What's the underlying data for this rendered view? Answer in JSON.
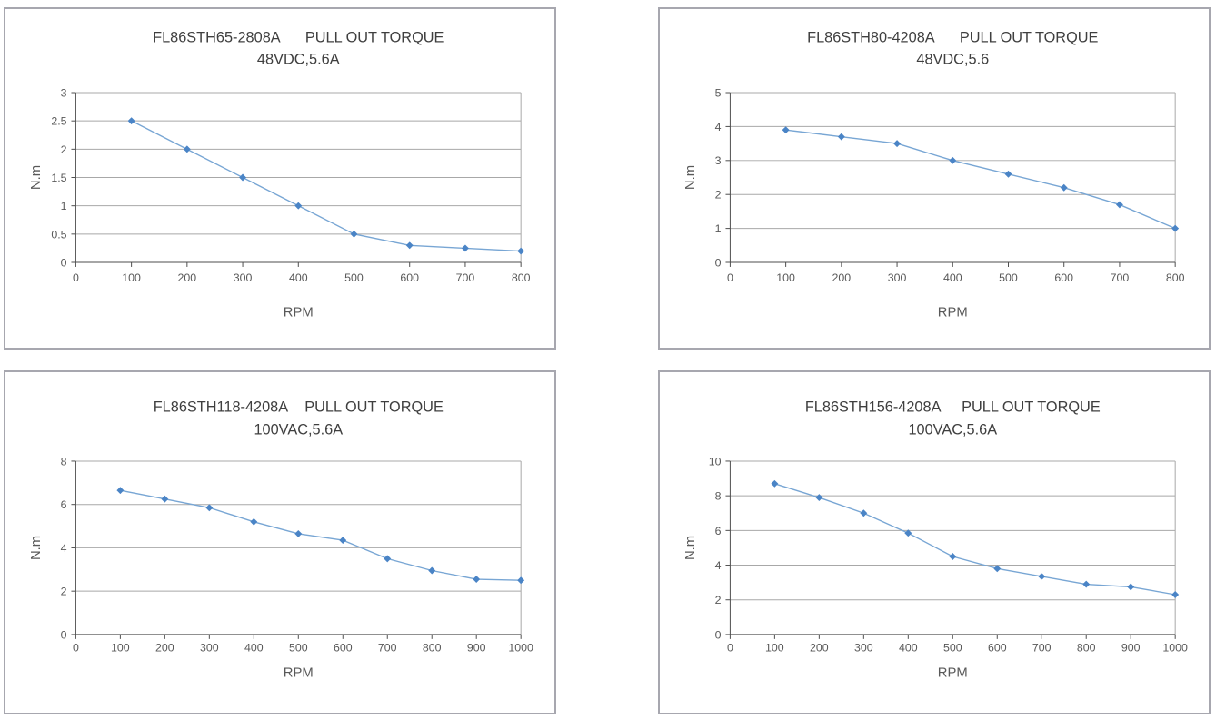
{
  "page": {
    "description": "Four pull-out torque curve charts for FL86STH stepper motors",
    "background": "#ffffff"
  },
  "colors": {
    "line": "#78a6d4",
    "marker": "#4a84c6",
    "grid": "#a8a8a8",
    "axis": "#4d4d4d",
    "panel_border": "#a7a7af",
    "title_text": "#3f3f3f",
    "tick_text": "#595959"
  },
  "chart_data": [
    {
      "type": "line",
      "title": "FL86STH65-2808A      PULL OUT TORQUE",
      "subtitle": "48VDC,5.6A",
      "xlabel": "RPM",
      "ylabel": "N.m",
      "x": [
        100,
        200,
        300,
        400,
        500,
        600,
        700,
        800
      ],
      "values": [
        2.5,
        2.0,
        1.5,
        1.0,
        0.5,
        0.3,
        0.25,
        0.2
      ],
      "xlim": [
        0,
        800
      ],
      "ylim": [
        0,
        3
      ],
      "xtick_step": 100,
      "ytick_step": 0.5,
      "grid": true,
      "legend": "none",
      "marker": "diamond"
    },
    {
      "type": "line",
      "title": "FL86STH80-4208A      PULL OUT TORQUE",
      "subtitle": "48VDC,5.6",
      "xlabel": "RPM",
      "ylabel": "N.m",
      "x": [
        100,
        200,
        300,
        400,
        500,
        600,
        700,
        800
      ],
      "values": [
        3.9,
        3.7,
        3.5,
        3.0,
        2.6,
        2.2,
        1.7,
        1.0
      ],
      "xlim": [
        0,
        800
      ],
      "ylim": [
        0,
        5
      ],
      "xtick_step": 100,
      "ytick_step": 1,
      "grid": true,
      "legend": "none",
      "marker": "diamond"
    },
    {
      "type": "line",
      "title": "FL86STH118-4208A    PULL OUT TORQUE",
      "subtitle": "100VAC,5.6A",
      "xlabel": "RPM",
      "ylabel": "N.m",
      "x": [
        100,
        200,
        300,
        400,
        500,
        600,
        700,
        800,
        900,
        1000
      ],
      "values": [
        6.65,
        6.25,
        5.85,
        5.2,
        4.65,
        4.35,
        3.5,
        2.95,
        2.55,
        2.5
      ],
      "xlim": [
        0,
        1000
      ],
      "ylim": [
        0,
        8
      ],
      "xtick_step": 100,
      "ytick_step": 2,
      "grid": true,
      "legend": "none",
      "marker": "diamond"
    },
    {
      "type": "line",
      "title": "FL86STH156-4208A     PULL OUT TORQUE",
      "subtitle": "100VAC,5.6A",
      "xlabel": "RPM",
      "ylabel": "N.m",
      "x": [
        100,
        200,
        300,
        400,
        500,
        600,
        700,
        800,
        900,
        1000
      ],
      "values": [
        8.7,
        7.9,
        7.0,
        5.85,
        4.5,
        3.8,
        3.35,
        2.9,
        2.75,
        2.3
      ],
      "xlim": [
        0,
        1000
      ],
      "ylim": [
        0,
        10
      ],
      "xtick_step": 100,
      "ytick_step": 2,
      "grid": true,
      "legend": "none",
      "marker": "diamond"
    }
  ]
}
